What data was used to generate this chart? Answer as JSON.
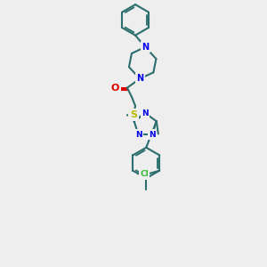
{
  "background_color": "#eeeeee",
  "bond_color": "#2d6e6e",
  "n_color": "#0000ee",
  "o_color": "#dd0000",
  "s_color": "#bbbb00",
  "cl_color": "#33bb33",
  "figsize": [
    3.0,
    3.0
  ],
  "dpi": 100,
  "xlim": [
    75,
    225
  ],
  "ylim": [
    5,
    300
  ]
}
